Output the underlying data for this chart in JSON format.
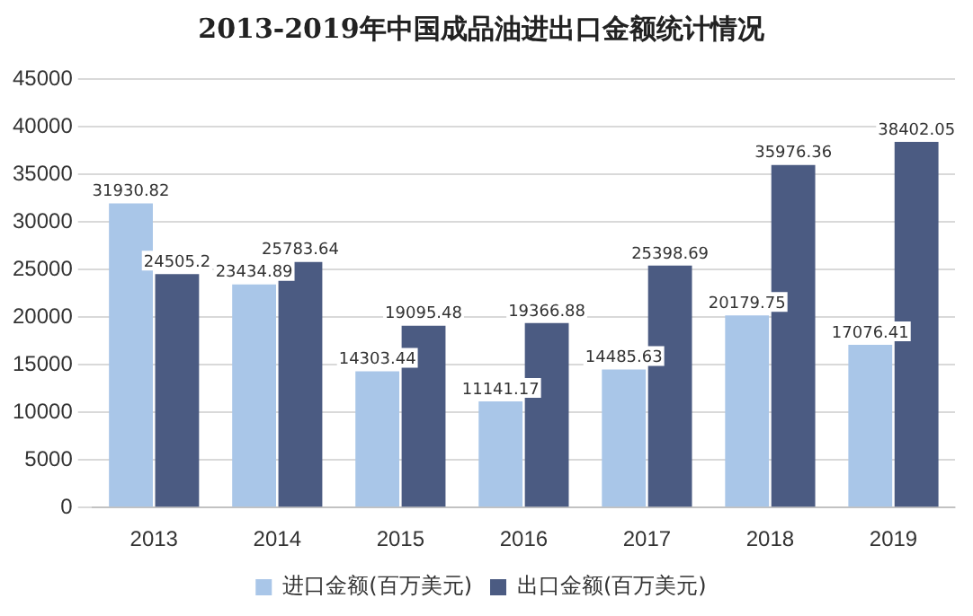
{
  "chart_data": {
    "type": "bar",
    "title": "2013-2019年中国成品油进出口金额统计情况",
    "categories": [
      "2013",
      "2014",
      "2015",
      "2016",
      "2017",
      "2018",
      "2019"
    ],
    "series": [
      {
        "name": "进口金额(百万美元)",
        "color": "#a9c6e8",
        "values": [
          31930.82,
          23434.89,
          14303.44,
          11141.17,
          14485.63,
          20179.75,
          17076.41
        ]
      },
      {
        "name": "出口金额(百万美元)",
        "color": "#4b5b82",
        "values": [
          24505.2,
          25783.64,
          19095.48,
          19366.88,
          25398.69,
          35976.36,
          38402.05
        ]
      }
    ],
    "ylim": [
      0,
      45000
    ],
    "yticks": [
      0,
      5000,
      10000,
      15000,
      20000,
      25000,
      30000,
      35000,
      40000,
      45000
    ],
    "grid": "y",
    "legend": "bottom",
    "data_labels": true
  }
}
